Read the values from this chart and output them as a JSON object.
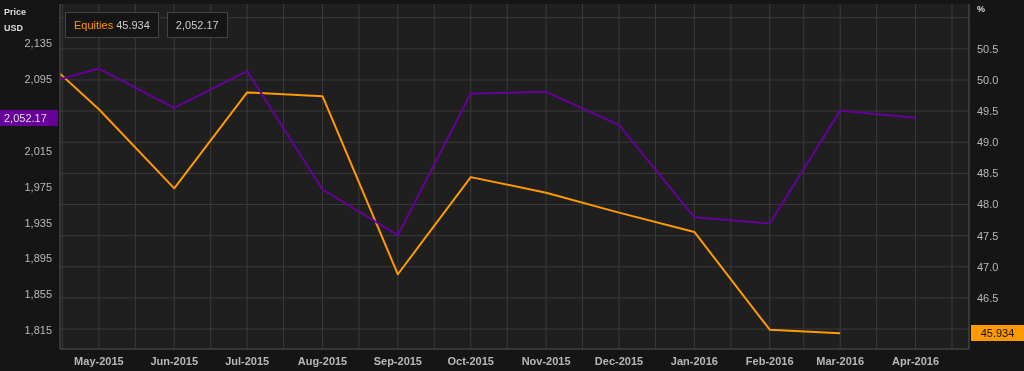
{
  "chart_data": {
    "type": "line",
    "x": [
      "2015-04-15",
      "2015-05-01",
      "2015-06-01",
      "2015-07-01",
      "2015-08-01",
      "2015-09-01",
      "2015-10-01",
      "2015-11-01",
      "2015-12-01",
      "2016-01-01",
      "2016-02-01",
      "2016-03-01",
      "2016-04-01"
    ],
    "series": [
      {
        "name": "Equities",
        "color": "#ff9900",
        "axis": "y2",
        "values": [
          50.1,
          49.53,
          48.26,
          49.8,
          49.74,
          46.88,
          48.44,
          48.19,
          47.87,
          47.56,
          45.99,
          45.934,
          null
        ]
      },
      {
        "color": "#660099",
        "values": [
          2095,
          2107,
          2063,
          2104,
          1972,
          1921,
          2079,
          2081,
          2044,
          1941,
          1934,
          2060,
          2052.17
        ]
      }
    ],
    "annotations": [
      "45.934",
      "2,052.17"
    ],
    "ylabel": "Price USD",
    "y2label": "%",
    "ylim": [
      1794,
      2179
    ],
    "yticks": [
      {
        "value": 1815,
        "label": "1,815"
      },
      {
        "value": 1855,
        "label": "1,855"
      },
      {
        "value": 1895,
        "label": "1,895"
      },
      {
        "value": 1935,
        "label": "1,935"
      },
      {
        "value": 1975,
        "label": "1,975"
      },
      {
        "value": 2015,
        "label": "2,015"
      },
      {
        "value": 2095,
        "label": "2,095"
      },
      {
        "value": 2135,
        "label": "2,135"
      }
    ],
    "y2lim": [
      45.68,
      51.22
    ],
    "y2ticks": [
      {
        "value": 46,
        "label": null
      },
      46.5,
      {
        "value": 47,
        "label": "47.0"
      },
      47.5,
      {
        "value": 48,
        "label": "48.0"
      },
      48.5,
      {
        "value": 49,
        "label": "49.0"
      },
      49.5,
      {
        "value": 50,
        "label": "50.0"
      },
      50.5,
      {
        "value": 51,
        "label": null
      }
    ],
    "xlim": [
      "2015-04-15",
      "2016-04-23"
    ],
    "xticks": [
      {
        "value": "2015-04-16",
        "label": null
      },
      {
        "value": "2015-05-01",
        "label": "May-2015"
      },
      {
        "value": "2015-05-16",
        "label": null
      },
      {
        "value": "2015-06-01",
        "label": "Jun-2015"
      },
      {
        "value": "2015-06-16",
        "label": null
      },
      {
        "value": "2015-07-01",
        "label": "Jul-2015"
      },
      {
        "value": "2015-07-16",
        "label": null
      },
      {
        "value": "2015-08-01",
        "label": "Aug-2015"
      },
      {
        "value": "2015-08-16",
        "label": null
      },
      {
        "value": "2015-09-01",
        "label": "Sep-2015"
      },
      {
        "value": "2015-09-16",
        "label": null
      },
      {
        "value": "2015-10-01",
        "label": "Oct-2015"
      },
      {
        "value": "2015-10-16",
        "label": null
      },
      {
        "value": "2015-11-01",
        "label": "Nov-2015"
      },
      {
        "value": "2015-11-16",
        "label": null
      },
      {
        "value": "2015-12-01",
        "label": "Dec-2015"
      },
      {
        "value": "2015-12-16",
        "label": null
      },
      {
        "value": "2016-01-01",
        "label": "Jan-2016"
      },
      {
        "value": "2016-01-16",
        "label": null
      },
      {
        "value": "2016-02-01",
        "label": "Feb-2016"
      },
      {
        "value": "2016-02-15",
        "label": null
      },
      {
        "value": "2016-03-01",
        "label": "Mar-2016"
      },
      {
        "value": "2016-03-16",
        "label": null
      },
      {
        "value": "2016-04-01",
        "label": "Apr-2016"
      },
      {
        "value": "2016-04-16",
        "label": null
      }
    ],
    "grid": true,
    "legend": "top left",
    "marker": "none",
    "line_style": "solid"
  }
}
